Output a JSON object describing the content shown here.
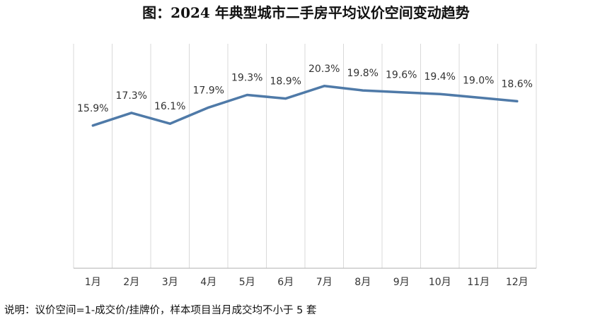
{
  "title": "图：2024 年典型城市二手房平均议价空间变动趋势",
  "note": "说明：议价空间=1-成交价/挂牌价，样本项目当月成交均不小于 5 套",
  "colors": {
    "line": "#4f7aa8",
    "grid": "#d9d9d9",
    "axis": "#bfbfbf",
    "text": "#333333"
  },
  "chart_data": {
    "type": "line",
    "title": "图：2024 年典型城市二手房平均议价空间变动趋势",
    "categories": [
      "1月",
      "2月",
      "3月",
      "4月",
      "5月",
      "6月",
      "7月",
      "8月",
      "9月",
      "10月",
      "11月",
      "12月"
    ],
    "values": [
      15.9,
      17.3,
      16.1,
      17.9,
      19.3,
      18.9,
      20.3,
      19.8,
      19.6,
      19.4,
      19.0,
      18.6
    ],
    "value_labels": [
      "15.9%",
      "17.3%",
      "16.1%",
      "17.9%",
      "19.3%",
      "18.9%",
      "20.3%",
      "19.8%",
      "19.6%",
      "19.4%",
      "19.0%",
      "18.6%"
    ],
    "unit": "%",
    "xlabel": "",
    "ylabel": "",
    "ylim": [
      0,
      25
    ],
    "grid": "vertical",
    "legend": "none"
  }
}
